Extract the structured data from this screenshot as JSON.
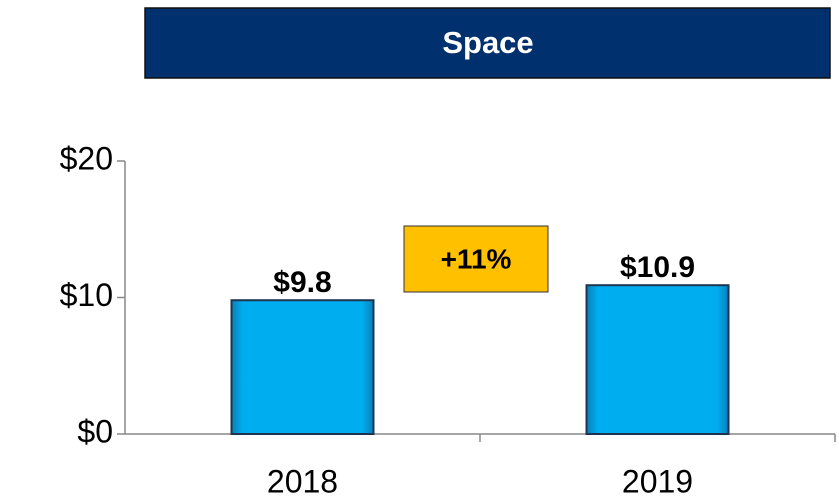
{
  "chart_data": {
    "type": "bar",
    "title": "Space",
    "categories": [
      "2018",
      "2019"
    ],
    "values": [
      9.8,
      10.9
    ],
    "value_labels": [
      "$9.8",
      "$10.9"
    ],
    "color": "#00aeef",
    "ylim": [
      0,
      20
    ],
    "yticks": [
      {
        "value": 0,
        "label": "$0"
      },
      {
        "value": 10,
        "label": "$10"
      },
      {
        "value": 20,
        "label": "$20"
      }
    ],
    "annotation": "+11%"
  }
}
